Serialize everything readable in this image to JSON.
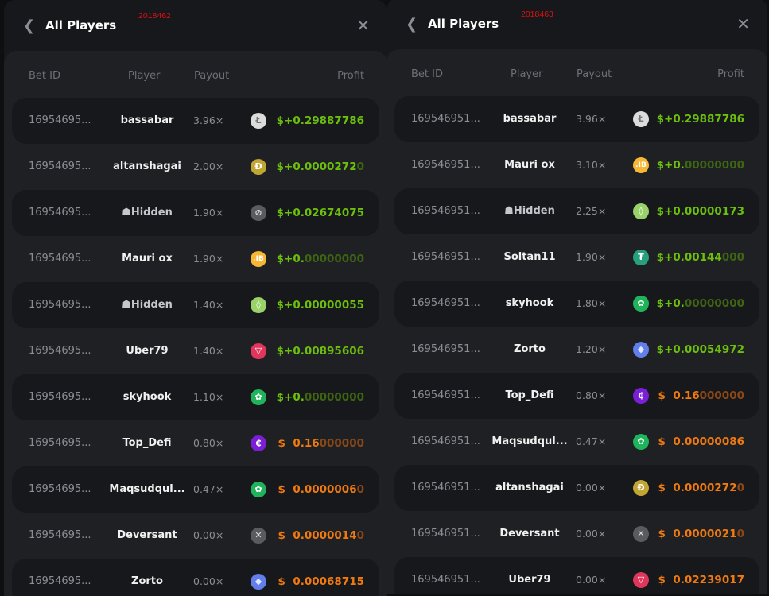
{
  "colors": {
    "profit_positive": "#6cbf0c",
    "profit_negative": "#f07a10",
    "panel_bg": "#17181b"
  },
  "columns": {
    "bet_id": "Bet ID",
    "player": "Player",
    "payout": "Payout",
    "profit": "Profit"
  },
  "panels": [
    {
      "title": "All Players",
      "tag": "2018462",
      "back_icon": "chevron-left-icon",
      "close_icon": "close-icon",
      "rows": [
        {
          "bet_id": "16954695...",
          "player": "bassabar",
          "payout": "3.96×",
          "coin": "litecoin",
          "sign": "$+",
          "bright": "0.29887786",
          "dim": "",
          "positive": true
        },
        {
          "bet_id": "16954695...",
          "player": "altanshagai",
          "payout": "2.00×",
          "coin": "dogecoin",
          "sign": "$+",
          "bright": "0.0000272",
          "dim": "0",
          "positive": true
        },
        {
          "bet_id": "16954695...",
          "player": "Hidden",
          "hidden": true,
          "payout": "1.90×",
          "coin": "stellar",
          "sign": "$+",
          "bright": "0.02674075",
          "dim": "",
          "positive": true
        },
        {
          "bet_id": "16954695...",
          "player": "Mauri ox",
          "payout": "1.90×",
          "coin": "jb",
          "sign": "$+",
          "bright": "0.",
          "dim": "00000000",
          "positive": true
        },
        {
          "bet_id": "16954695...",
          "player": "Hidden",
          "hidden": true,
          "payout": "1.40×",
          "coin": "eos",
          "sign": "$+",
          "bright": "0.00000055",
          "dim": "",
          "positive": true
        },
        {
          "bet_id": "16954695...",
          "player": "Uber79",
          "payout": "1.40×",
          "coin": "tron",
          "sign": "$+",
          "bright": "0.00895606",
          "dim": "",
          "positive": true
        },
        {
          "bet_id": "16954695...",
          "player": "skyhook",
          "payout": "1.10×",
          "coin": "turtle",
          "sign": "$+",
          "bright": "0.",
          "dim": "00000000",
          "positive": true
        },
        {
          "bet_id": "16954695...",
          "player": "Top_Defi",
          "payout": "0.80×",
          "coin": "purple-c",
          "sign": "$  ",
          "bright": "0.16",
          "dim": "000000",
          "positive": false
        },
        {
          "bet_id": "16954695...",
          "player": "Maqsudqul...",
          "payout": "0.47×",
          "coin": "turtle",
          "sign": "$  ",
          "bright": "0.0000006",
          "dim": "0",
          "positive": false
        },
        {
          "bet_id": "16954695...",
          "player": "Deversant",
          "payout": "0.00×",
          "coin": "xrp",
          "sign": "$  ",
          "bright": "0.0000014",
          "dim": "0",
          "positive": false
        },
        {
          "bet_id": "16954695...",
          "player": "Zorto",
          "payout": "0.00×",
          "coin": "ethereum",
          "sign": "$  ",
          "bright": "0.00068715",
          "dim": "",
          "positive": false
        }
      ]
    },
    {
      "title": "All Players",
      "tag": "2018463",
      "back_icon": "chevron-left-icon",
      "close_icon": "close-icon",
      "rows": [
        {
          "bet_id": "169546951...",
          "player": "bassabar",
          "payout": "3.96×",
          "coin": "litecoin",
          "sign": "$+",
          "bright": "0.29887786",
          "dim": "",
          "positive": true
        },
        {
          "bet_id": "169546951...",
          "player": "Mauri ox",
          "payout": "3.10×",
          "coin": "jb",
          "sign": "$+",
          "bright": "0.",
          "dim": "00000000",
          "positive": true
        },
        {
          "bet_id": "169546951...",
          "player": "Hidden",
          "hidden": true,
          "payout": "2.25×",
          "coin": "eos",
          "sign": "$+",
          "bright": "0.00000173",
          "dim": "",
          "positive": true
        },
        {
          "bet_id": "169546951...",
          "player": "Soltan11",
          "payout": "1.90×",
          "coin": "tether",
          "sign": "$+",
          "bright": "0.00144",
          "dim": "000",
          "positive": true
        },
        {
          "bet_id": "169546951...",
          "player": "skyhook",
          "payout": "1.80×",
          "coin": "turtle",
          "sign": "$+",
          "bright": "0.",
          "dim": "00000000",
          "positive": true
        },
        {
          "bet_id": "169546951...",
          "player": "Zorto",
          "payout": "1.20×",
          "coin": "ethereum",
          "sign": "$+",
          "bright": "0.00054972",
          "dim": "",
          "positive": true
        },
        {
          "bet_id": "169546951...",
          "player": "Top_Defi",
          "payout": "0.80×",
          "coin": "purple-c",
          "sign": "$  ",
          "bright": "0.16",
          "dim": "000000",
          "positive": false
        },
        {
          "bet_id": "169546951...",
          "player": "Maqsudqul...",
          "payout": "0.47×",
          "coin": "turtle",
          "sign": "$  ",
          "bright": "0.00000086",
          "dim": "",
          "positive": false
        },
        {
          "bet_id": "169546951...",
          "player": "altanshagai",
          "payout": "0.00×",
          "coin": "dogecoin",
          "sign": "$  ",
          "bright": "0.0000272",
          "dim": "0",
          "positive": false
        },
        {
          "bet_id": "169546951...",
          "player": "Deversant",
          "payout": "0.00×",
          "coin": "xrp",
          "sign": "$  ",
          "bright": "0.0000021",
          "dim": "0",
          "positive": false
        },
        {
          "bet_id": "169546951...",
          "player": "Uber79",
          "payout": "0.00×",
          "coin": "tron",
          "sign": "$  ",
          "bright": "0.02239017",
          "dim": "",
          "positive": false
        }
      ]
    }
  ]
}
